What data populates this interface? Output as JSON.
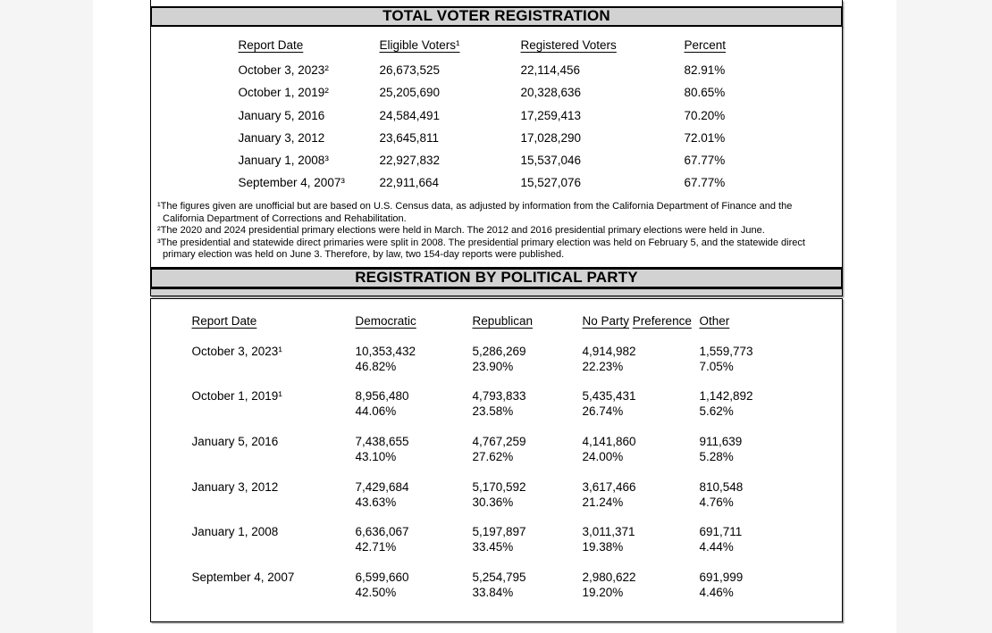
{
  "colors": {
    "viewer_background": "#f5f5f5",
    "page": "#ffffff",
    "title_bar": "#d2d2d2",
    "border": "#000000"
  },
  "table1": {
    "title": "TOTAL VOTER REGISTRATION",
    "columns": [
      "Report Date",
      "Eligible Voters¹",
      "Registered Voters",
      "Percent"
    ],
    "rows": [
      {
        "date": "October 3, 2023²",
        "eligible": "26,673,525",
        "registered": "22,114,456",
        "percent": "82.91%"
      },
      {
        "date": "October 1, 2019²",
        "eligible": "25,205,690",
        "registered": "20,328,636",
        "percent": "80.65%"
      },
      {
        "date": "January 5, 2016",
        "eligible": "24,584,491",
        "registered": "17,259,413",
        "percent": "70.20%"
      },
      {
        "date": "January 3, 2012",
        "eligible": "23,645,811",
        "registered": "17,028,290",
        "percent": "72.01%"
      },
      {
        "date": "January 1, 2008³",
        "eligible": "22,927,832",
        "registered": "15,537,046",
        "percent": "67.77%"
      },
      {
        "date": "September 4, 2007³",
        "eligible": "22,911,664",
        "registered": "15,527,076",
        "percent": "67.77%"
      }
    ],
    "footnotes": [
      "¹The figures given are unofficial but are based on U.S. Census data, as adjusted by information from the California Department of Finance and the California Department of Corrections and Rehabilitation.",
      "²The 2020 and 2024 presidential primary elections were held in March. The 2012 and 2016 presidential primary elections were held in June.",
      "³The presidential and statewide direct primaries were split in 2008. The presidential primary election was held on February 5, and the statewide direct primary election was held on June 3. Therefore, by law, two 154-day reports were published."
    ]
  },
  "table2": {
    "title": "REGISTRATION BY POLITICAL PARTY",
    "columns": {
      "date": "Report Date",
      "democratic": "Democratic",
      "republican": "Republican",
      "no_party_line1": "No Party",
      "no_party_line2": "Preference",
      "other": "Other"
    },
    "rows": [
      {
        "date": "October 3, 2023¹",
        "democratic": "10,353,432",
        "democratic_pct": "46.82%",
        "republican": "5,286,269",
        "republican_pct": "23.90%",
        "no_party": "4,914,982",
        "no_party_pct": "22.23%",
        "other": "1,559,773",
        "other_pct": "7.05%"
      },
      {
        "date": "October 1, 2019¹",
        "democratic": "8,956,480",
        "democratic_pct": "44.06%",
        "republican": "4,793,833",
        "republican_pct": "23.58%",
        "no_party": "5,435,431",
        "no_party_pct": "26.74%",
        "other": "1,142,892",
        "other_pct": "5.62%"
      },
      {
        "date": "January 5, 2016",
        "democratic": "7,438,655",
        "democratic_pct": "43.10%",
        "republican": "4,767,259",
        "republican_pct": "27.62%",
        "no_party": "4,141,860",
        "no_party_pct": "24.00%",
        "other": "911,639",
        "other_pct": "5.28%"
      },
      {
        "date": "January 3, 2012",
        "democratic": "7,429,684",
        "democratic_pct": "43.63%",
        "republican": "5,170,592",
        "republican_pct": "30.36%",
        "no_party": "3,617,466",
        "no_party_pct": "21.24%",
        "other": "810,548",
        "other_pct": "4.76%"
      },
      {
        "date": "January 1, 2008",
        "democratic": "6,636,067",
        "democratic_pct": "42.71%",
        "republican": "5,197,897",
        "republican_pct": "33.45%",
        "no_party": "3,011,371",
        "no_party_pct": "19.38%",
        "other": "691,711",
        "other_pct": "4.44%"
      },
      {
        "date": "September 4, 2007",
        "democratic": "6,599,660",
        "democratic_pct": "42.50%",
        "republican": "5,254,795",
        "republican_pct": "33.84%",
        "no_party": "2,980,622",
        "no_party_pct": "19.20%",
        "other": "691,999",
        "other_pct": "4.46%"
      }
    ]
  }
}
